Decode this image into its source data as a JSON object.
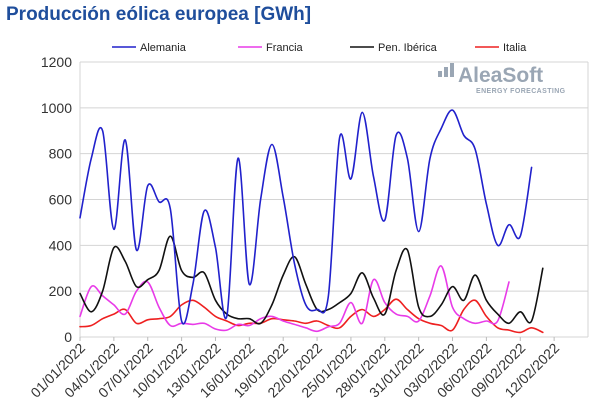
{
  "title": "Producción eólica europea [GWh]",
  "logo": {
    "name": "AleaSoft",
    "tagline": "ENERGY FORECASTING",
    "color": "#9aa6b4"
  },
  "chart_data": {
    "type": "line",
    "title": "Producción eólica europea [GWh]",
    "xlabel": "",
    "ylabel": "",
    "ylim": [
      0,
      1200
    ],
    "yticks": [
      0,
      200,
      400,
      600,
      800,
      1000,
      1200
    ],
    "grid": true,
    "legend_position": "top",
    "x": [
      "01/01/2022",
      "02/01/2022",
      "03/01/2022",
      "04/01/2022",
      "05/01/2022",
      "06/01/2022",
      "07/01/2022",
      "08/01/2022",
      "09/01/2022",
      "10/01/2022",
      "11/01/2022",
      "12/01/2022",
      "13/01/2022",
      "14/01/2022",
      "15/01/2022",
      "16/01/2022",
      "17/01/2022",
      "18/01/2022",
      "19/01/2022",
      "20/01/2022",
      "21/01/2022",
      "22/01/2022",
      "23/01/2022",
      "24/01/2022",
      "25/01/2022",
      "26/01/2022",
      "27/01/2022",
      "28/01/2022",
      "29/01/2022",
      "30/01/2022",
      "31/01/2022",
      "01/02/2022",
      "02/02/2022",
      "03/02/2022",
      "04/02/2022",
      "05/02/2022",
      "06/02/2022",
      "07/02/2022",
      "08/02/2022",
      "09/02/2022",
      "10/02/2022",
      "11/02/2022",
      "12/02/2022",
      "13/02/2022",
      "14/02/2022",
      "15/02/2022"
    ],
    "xticks": [
      "01/01/2022",
      "04/01/2022",
      "07/01/2022",
      "10/01/2022",
      "13/01/2022",
      "16/01/2022",
      "19/01/2022",
      "22/01/2022",
      "25/01/2022",
      "28/01/2022",
      "31/01/2022",
      "03/02/2022",
      "06/02/2022",
      "09/02/2022",
      "12/02/2022"
    ],
    "series": [
      {
        "name": "Alemania",
        "color": "#2121cc",
        "values": [
          520,
          780,
          900,
          470,
          860,
          380,
          660,
          590,
          560,
          70,
          230,
          550,
          390,
          90,
          780,
          230,
          600,
          840,
          610,
          320,
          140,
          120,
          180,
          870,
          690,
          980,
          700,
          510,
          880,
          780,
          460,
          780,
          910,
          990,
          880,
          820,
          580,
          400,
          490,
          440,
          740,
          null,
          null,
          null,
          null,
          null
        ]
      },
      {
        "name": "Francia",
        "color": "#e83be8",
        "values": [
          90,
          220,
          180,
          140,
          100,
          200,
          240,
          130,
          50,
          60,
          55,
          60,
          35,
          30,
          55,
          50,
          80,
          90,
          70,
          55,
          40,
          25,
          45,
          60,
          150,
          60,
          250,
          150,
          100,
          90,
          70,
          180,
          310,
          130,
          80,
          60,
          70,
          70,
          240,
          null,
          null,
          null,
          null,
          null,
          null,
          null
        ]
      },
      {
        "name": "Pen. Ibérica",
        "color": "#111111",
        "values": [
          190,
          110,
          200,
          390,
          330,
          220,
          250,
          290,
          440,
          290,
          260,
          280,
          160,
          100,
          80,
          80,
          60,
          140,
          270,
          350,
          230,
          120,
          120,
          150,
          190,
          280,
          170,
          100,
          290,
          380,
          130,
          90,
          140,
          220,
          160,
          270,
          160,
          100,
          60,
          110,
          70,
          300,
          null,
          null,
          null,
          null
        ]
      },
      {
        "name": "Italia",
        "color": "#ee2020",
        "values": [
          45,
          50,
          80,
          100,
          120,
          60,
          75,
          80,
          90,
          140,
          160,
          130,
          90,
          70,
          50,
          60,
          60,
          80,
          75,
          70,
          60,
          70,
          50,
          40,
          90,
          120,
          90,
          120,
          165,
          120,
          80,
          60,
          50,
          30,
          120,
          160,
          90,
          40,
          30,
          20,
          40,
          20,
          null,
          null,
          null,
          null
        ]
      }
    ]
  }
}
